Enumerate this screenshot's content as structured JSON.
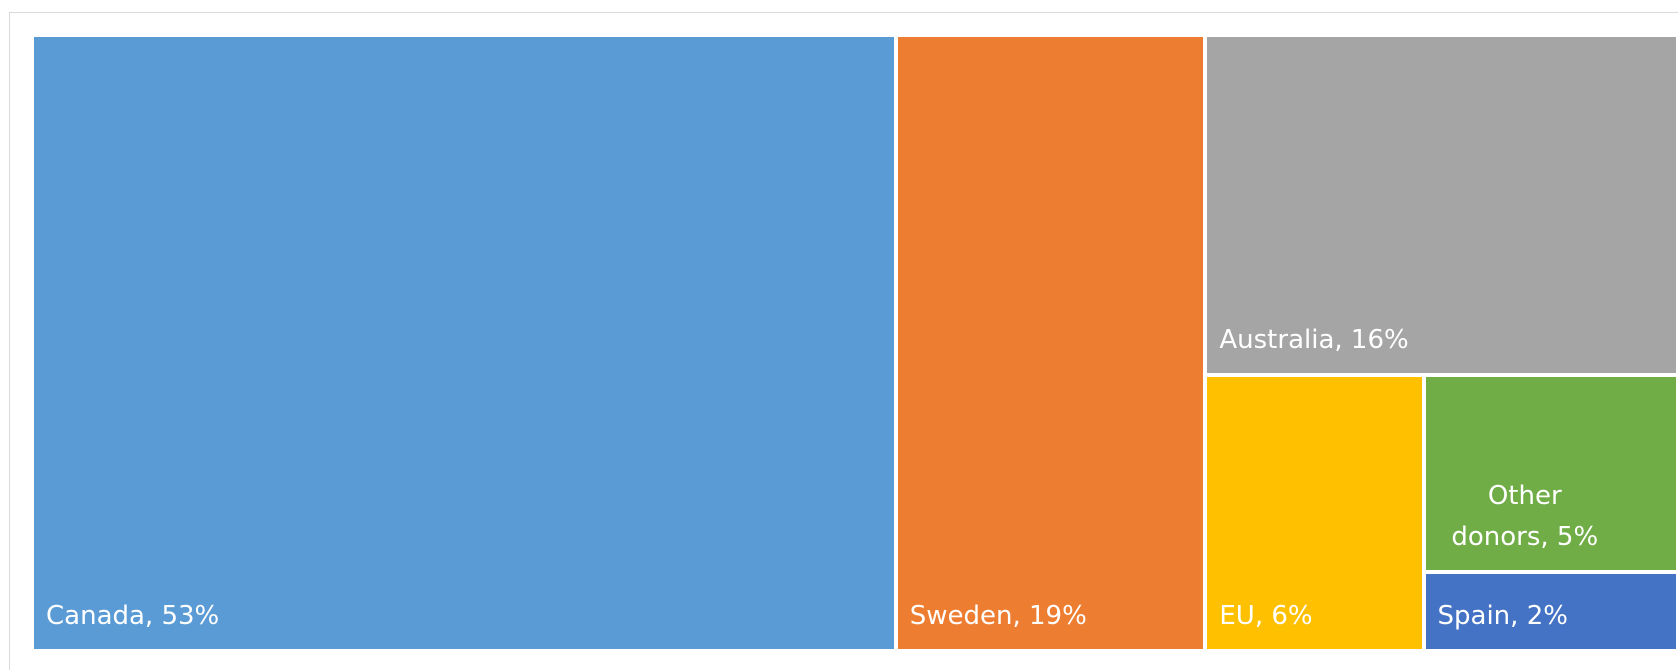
{
  "chart_data": {
    "type": "treemap",
    "values": [
      53,
      19,
      16,
      6,
      5,
      2
    ],
    "value_labels": [
      "Canada, 53%",
      "Sweden, 19%",
      "Australia, 16%",
      "EU, 6%",
      "Other donors, 5%",
      "Spain, 2%"
    ],
    "colors": [
      "#5b9bd5",
      "#ed7d31",
      "#a5a5a5",
      "#ffc000",
      "#70ad47",
      "#4472c4"
    ]
  }
}
